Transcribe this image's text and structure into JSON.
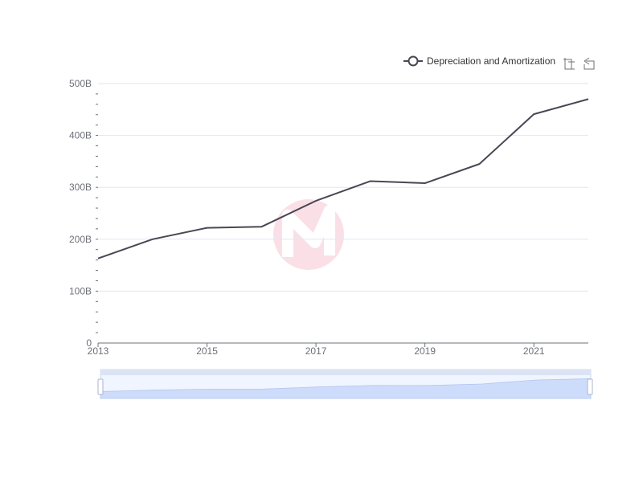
{
  "chart_data": {
    "type": "line",
    "title": "",
    "xlabel": "",
    "ylabel": "",
    "x": [
      2013,
      2014,
      2015,
      2016,
      2017,
      2018,
      2019,
      2020,
      2021,
      2022
    ],
    "x_tick_labels": [
      "2013",
      "2015",
      "2017",
      "2019",
      "2021"
    ],
    "x_tick_values": [
      2013,
      2015,
      2017,
      2019,
      2021
    ],
    "xlim": [
      2013,
      2022
    ],
    "y_tick_labels": [
      "0",
      "100B",
      "200B",
      "300B",
      "400B",
      "500B"
    ],
    "y_tick_values": [
      0,
      100,
      200,
      300,
      400,
      500
    ],
    "ylim": [
      0,
      500
    ],
    "y_unit": "billions",
    "grid": true,
    "legend_position": "top-right",
    "series": [
      {
        "name": "Depreciation and Amortization",
        "color": "#4a4754",
        "values": [
          163,
          200,
          222,
          224,
          274,
          312,
          308,
          345,
          441,
          470
        ]
      }
    ]
  },
  "colors": {
    "grid": "#e0e6f1",
    "axis": "#6e7079",
    "slider_fill": "#d9e3fb",
    "slider_border": "#d2dbee",
    "slider_handle_bar": "#dbe3f4",
    "watermark": "#f4b8c6"
  },
  "toolbox": {
    "zoom_icon": "data-zoom-icon",
    "reset_icon": "zoom-reset-icon"
  }
}
